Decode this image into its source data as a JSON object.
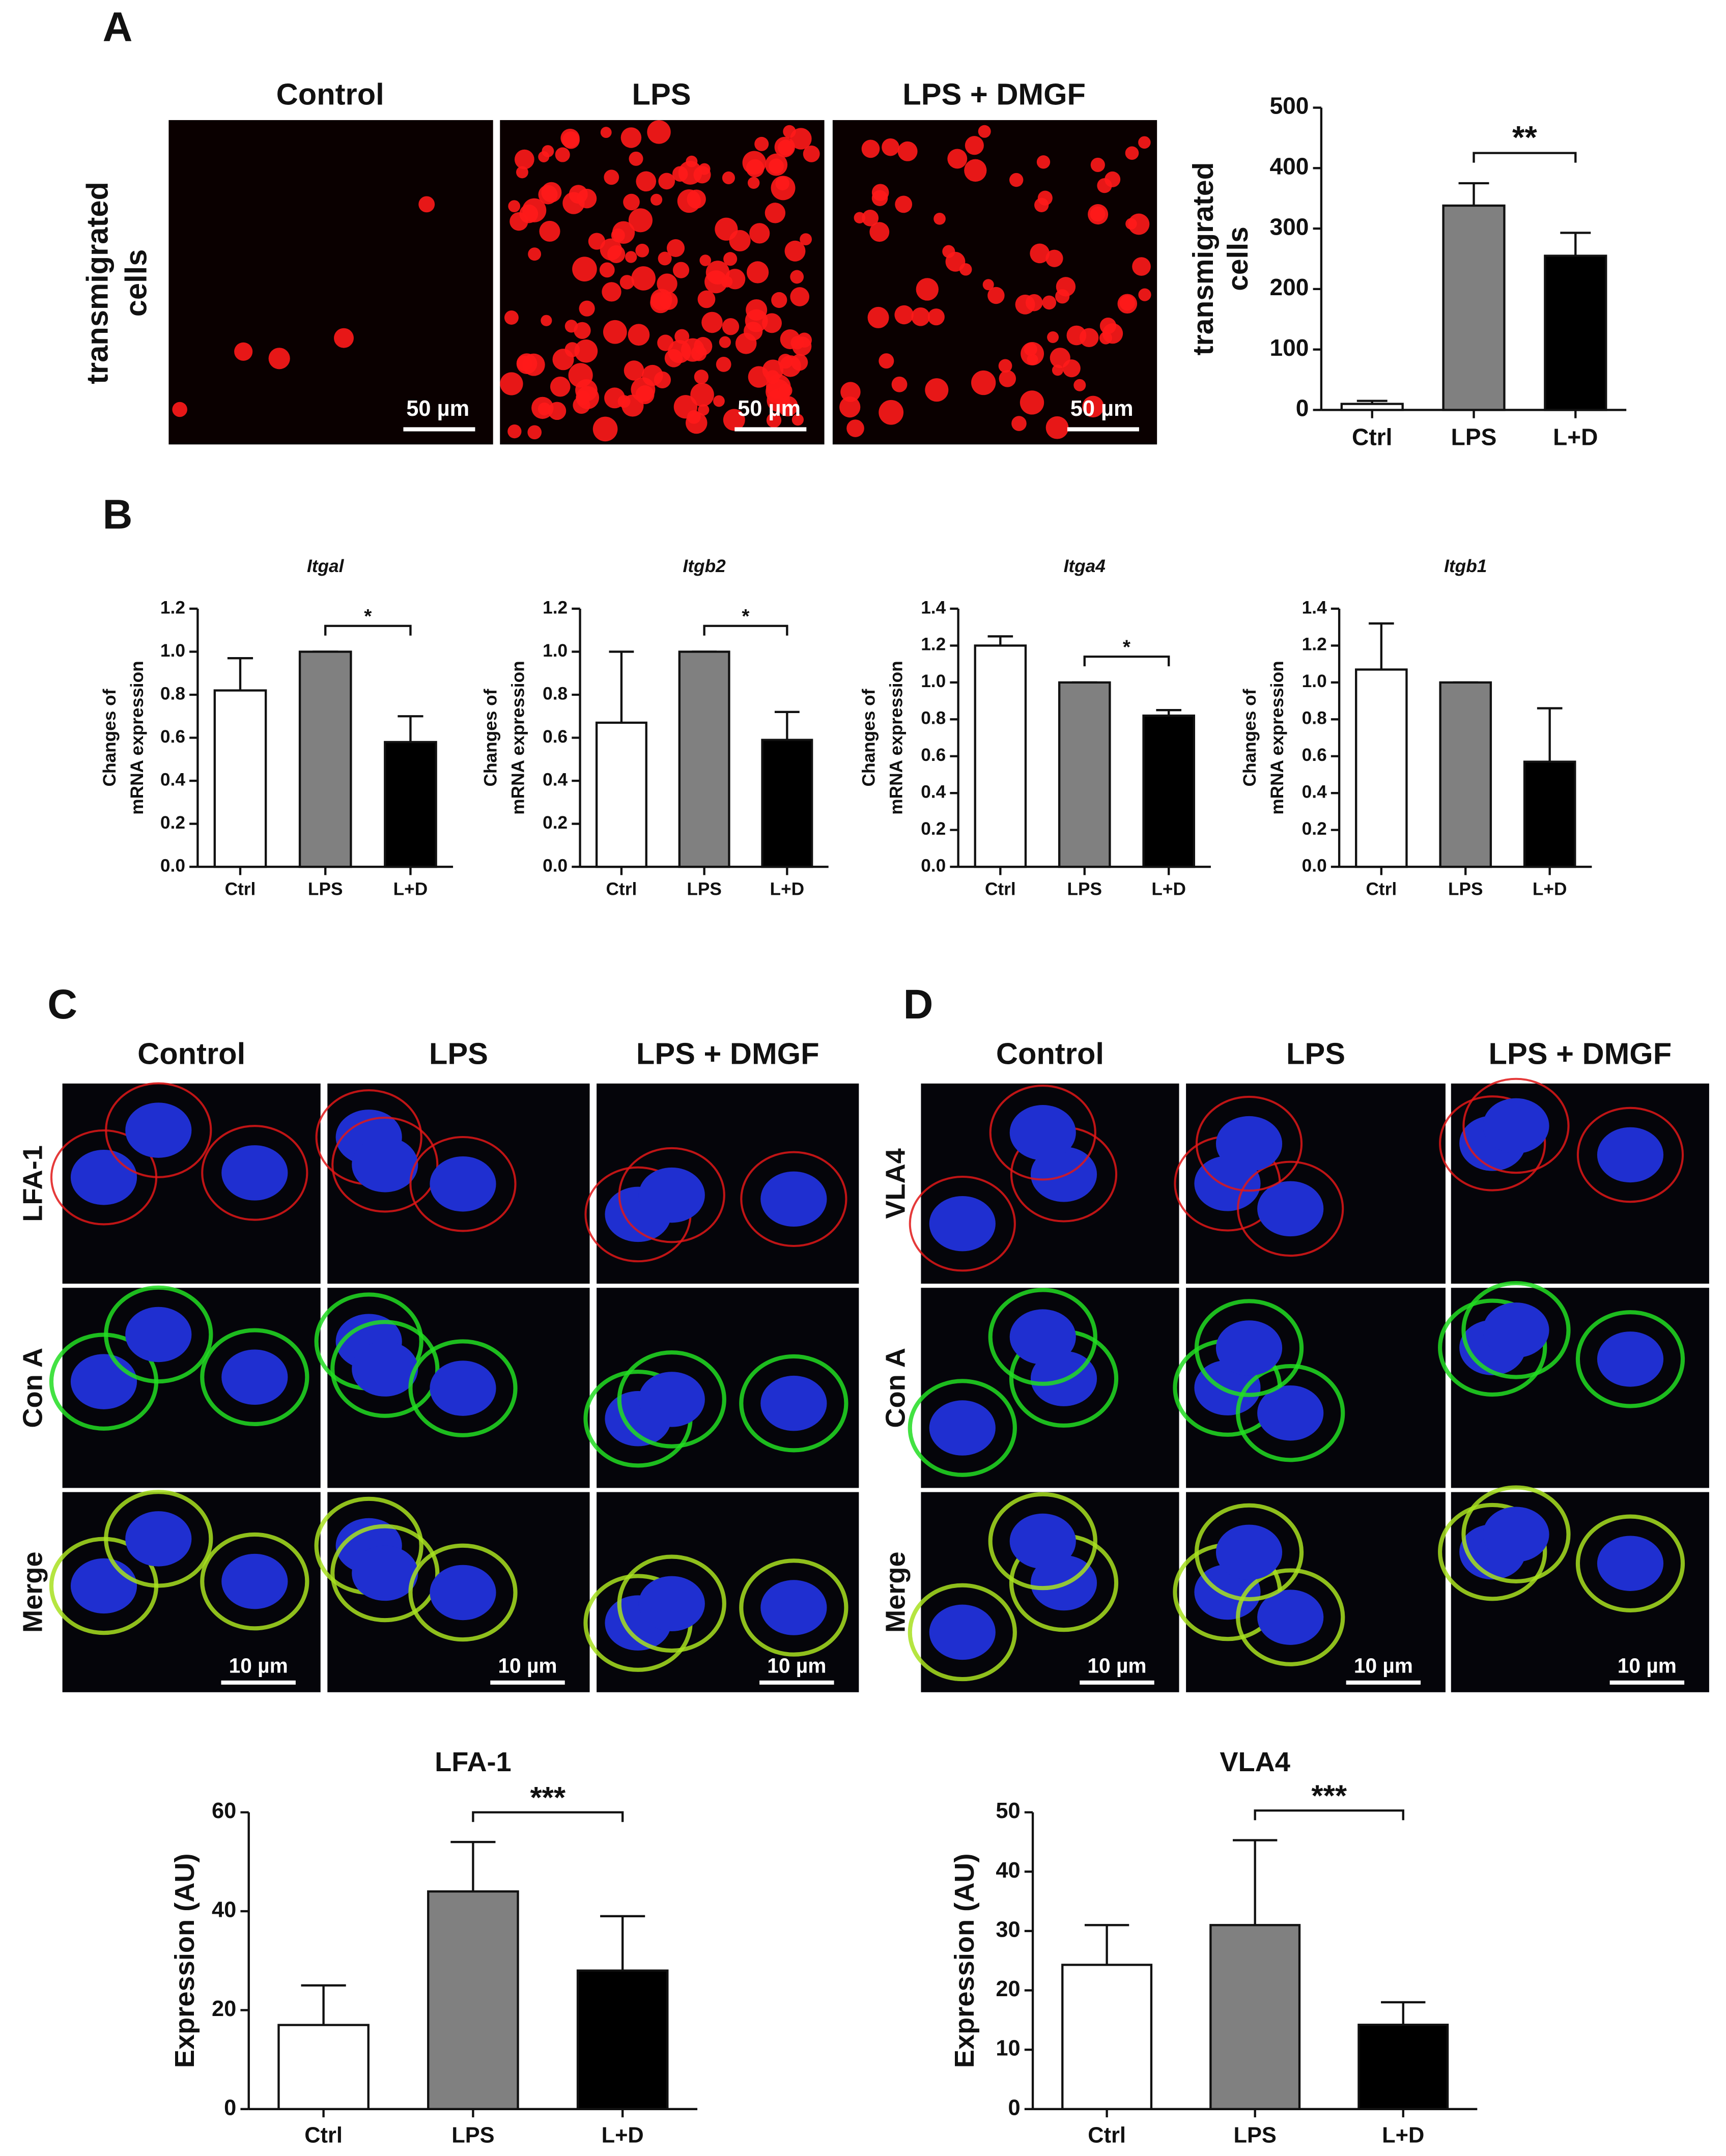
{
  "figure": {
    "panel_labels": [
      "A",
      "B",
      "C",
      "D"
    ],
    "panel_a": {
      "columns": [
        "Control",
        "LPS",
        "LPS + DMGF"
      ],
      "row_label": [
        "transmigrated",
        "cells"
      ],
      "scale_bar": "50 µm"
    },
    "panel_c": {
      "columns": [
        "Control",
        "LPS",
        "LPS + DMGF"
      ],
      "rows": [
        "LFA-1",
        "Con A",
        "Merge"
      ],
      "scale_bar": "10 µm"
    },
    "panel_d": {
      "columns": [
        "Control",
        "LPS",
        "LPS + DMGF"
      ],
      "rows": [
        "VLA4",
        "Con A",
        "Merge"
      ],
      "scale_bar": "10 µm"
    }
  },
  "chart_data": [
    {
      "type": "bar",
      "ylabel": [
        "transmigrated",
        "cells"
      ],
      "categories": [
        "Ctrl",
        "LPS",
        "L+D"
      ],
      "values": [
        10,
        338,
        255
      ],
      "errors": [
        5,
        37,
        38
      ],
      "colors": [
        "#ffffff",
        "#808080",
        "#000000"
      ],
      "ylim": [
        0,
        500
      ],
      "yticks": [
        0,
        100,
        200,
        300,
        400,
        500
      ],
      "significance": {
        "between": [
          "LPS",
          "L+D"
        ],
        "label": "**"
      }
    },
    {
      "type": "bar",
      "title": "Itgal",
      "ylabel": [
        "Changes of",
        "mRNA expression"
      ],
      "categories": [
        "Ctrl",
        "LPS",
        "L+D"
      ],
      "values": [
        0.82,
        1.0,
        0.58
      ],
      "errors": [
        0.15,
        0,
        0.12
      ],
      "colors": [
        "#ffffff",
        "#808080",
        "#000000"
      ],
      "ylim": [
        0,
        1.2
      ],
      "yticks": [
        {
          "value": 0,
          "label": "0.0"
        },
        0.2,
        0.4,
        0.6,
        0.8,
        {
          "value": 1,
          "label": "1.0"
        },
        1.2
      ],
      "significance": {
        "between": [
          "LPS",
          "L+D"
        ],
        "label": "*"
      }
    },
    {
      "type": "bar",
      "title": "Itgb2",
      "ylabel": [
        "Changes of",
        "mRNA expression"
      ],
      "categories": [
        "Ctrl",
        "LPS",
        "L+D"
      ],
      "values": [
        0.67,
        1.0,
        0.59
      ],
      "errors": [
        0.33,
        0,
        0.13
      ],
      "colors": [
        "#ffffff",
        "#808080",
        "#000000"
      ],
      "ylim": [
        0,
        1.2
      ],
      "yticks": [
        {
          "value": 0,
          "label": "0.0"
        },
        0.2,
        0.4,
        0.6,
        0.8,
        {
          "value": 1,
          "label": "1.0"
        },
        1.2
      ],
      "significance": {
        "between": [
          "LPS",
          "L+D"
        ],
        "label": "*"
      }
    },
    {
      "type": "bar",
      "title": "Itga4",
      "ylabel": [
        "Changes of",
        "mRNA expression"
      ],
      "categories": [
        "Ctrl",
        "LPS",
        "L+D"
      ],
      "values": [
        1.2,
        1.0,
        0.82
      ],
      "errors": [
        0.05,
        0,
        0.03
      ],
      "colors": [
        "#ffffff",
        "#808080",
        "#000000"
      ],
      "ylim": [
        0,
        1.4
      ],
      "yticks": [
        {
          "value": 0,
          "label": "0.0"
        },
        0.2,
        0.4,
        0.6,
        0.8,
        {
          "value": 1,
          "label": "1.0"
        },
        1.2,
        1.4
      ],
      "significance": {
        "between": [
          "LPS",
          "L+D"
        ],
        "label": "*"
      }
    },
    {
      "type": "bar",
      "title": "Itgb1",
      "ylabel": [
        "Changes of",
        "mRNA expression"
      ],
      "categories": [
        "Ctrl",
        "LPS",
        "L+D"
      ],
      "values": [
        1.07,
        1.0,
        0.57
      ],
      "errors": [
        0.25,
        0,
        0.29
      ],
      "colors": [
        "#ffffff",
        "#808080",
        "#000000"
      ],
      "ylim": [
        0,
        1.4
      ],
      "yticks": [
        {
          "value": 0,
          "label": "0.0"
        },
        0.2,
        0.4,
        0.6,
        0.8,
        {
          "value": 1,
          "label": "1.0"
        },
        1.2,
        1.4
      ]
    },
    {
      "type": "bar",
      "title": "LFA-1",
      "ylabel": [
        "Expression (AU)"
      ],
      "categories": [
        "Ctrl",
        "LPS",
        "L+D"
      ],
      "values": [
        17,
        44,
        28
      ],
      "errors": [
        8,
        10,
        11
      ],
      "colors": [
        "#ffffff",
        "#808080",
        "#000000"
      ],
      "ylim": [
        0,
        60
      ],
      "yticks": [
        0,
        20,
        40,
        60
      ],
      "significance": {
        "between": [
          "LPS",
          "L+D"
        ],
        "label": "***"
      }
    },
    {
      "type": "bar",
      "title": "VLA4",
      "ylabel": [
        "Expression (AU)"
      ],
      "categories": [
        "Ctrl",
        "LPS",
        "L+D"
      ],
      "values": [
        24.3,
        31,
        14.2
      ],
      "errors": [
        6.7,
        14.3,
        3.8
      ],
      "colors": [
        "#ffffff",
        "#808080",
        "#000000"
      ],
      "ylim": [
        0,
        50
      ],
      "yticks": [
        0,
        10,
        20,
        30,
        40,
        50
      ],
      "significance": {
        "between": [
          "LPS",
          "L+D"
        ],
        "label": "***"
      }
    }
  ]
}
